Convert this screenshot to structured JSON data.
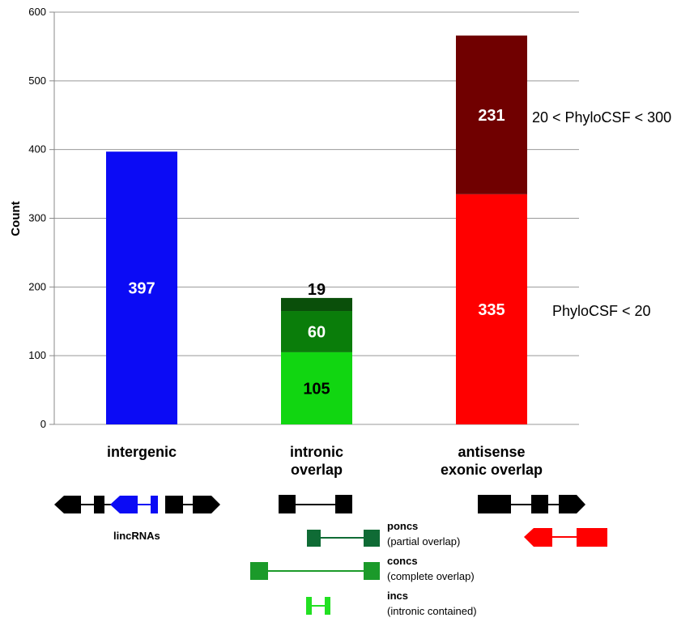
{
  "chart_data": {
    "type": "bar",
    "stacked": true,
    "ylabel": "Count",
    "ylim": [
      0,
      600
    ],
    "yticks": [
      0,
      100,
      200,
      300,
      400,
      500,
      600
    ],
    "grid": true,
    "categories": [
      [
        "intergenic"
      ],
      [
        "intronic",
        "overlap"
      ],
      [
        "antisense",
        "exonic overlap"
      ]
    ],
    "stacks": [
      {
        "category": "intergenic",
        "segments": [
          {
            "value": 397,
            "color": "#0b0bf5",
            "label": "397",
            "label_color": "#ffffff"
          }
        ]
      },
      {
        "category": "intronic overlap",
        "segments": [
          {
            "value": 105,
            "color": "#11d611",
            "label": "105",
            "label_color": "#000000"
          },
          {
            "value": 60,
            "color": "#0a7d0a",
            "label": "60",
            "label_color": "#ffffff"
          },
          {
            "value": 19,
            "color": "#0a4f0a",
            "label": "19",
            "label_color": "#000000",
            "label_above": true
          }
        ]
      },
      {
        "category": "antisense exonic overlap",
        "segments": [
          {
            "value": 335,
            "color": "#ff0000",
            "label": "335",
            "label_color": "#ffffff"
          },
          {
            "value": 231,
            "color": "#700000",
            "label": "231",
            "label_color": "#ffffff"
          }
        ]
      }
    ],
    "annotations": {
      "upper": "20 < PhyloCSF < 300",
      "lower": "PhyloCSF < 20"
    }
  },
  "diagram": {
    "lincrnas_caption": "lincRNAs",
    "legend": [
      {
        "title": "poncs",
        "description": "(partial overlap)",
        "color": "#0f6b35"
      },
      {
        "title": "concs",
        "description": "(complete overlap)",
        "color": "#1b9a2a"
      },
      {
        "title": "incs",
        "description": "(intronic contained)",
        "color": "#22e022"
      }
    ],
    "colors": {
      "gene": "#000000",
      "lincrna": "#0b0bf5",
      "antisense": "#ff0000"
    }
  }
}
